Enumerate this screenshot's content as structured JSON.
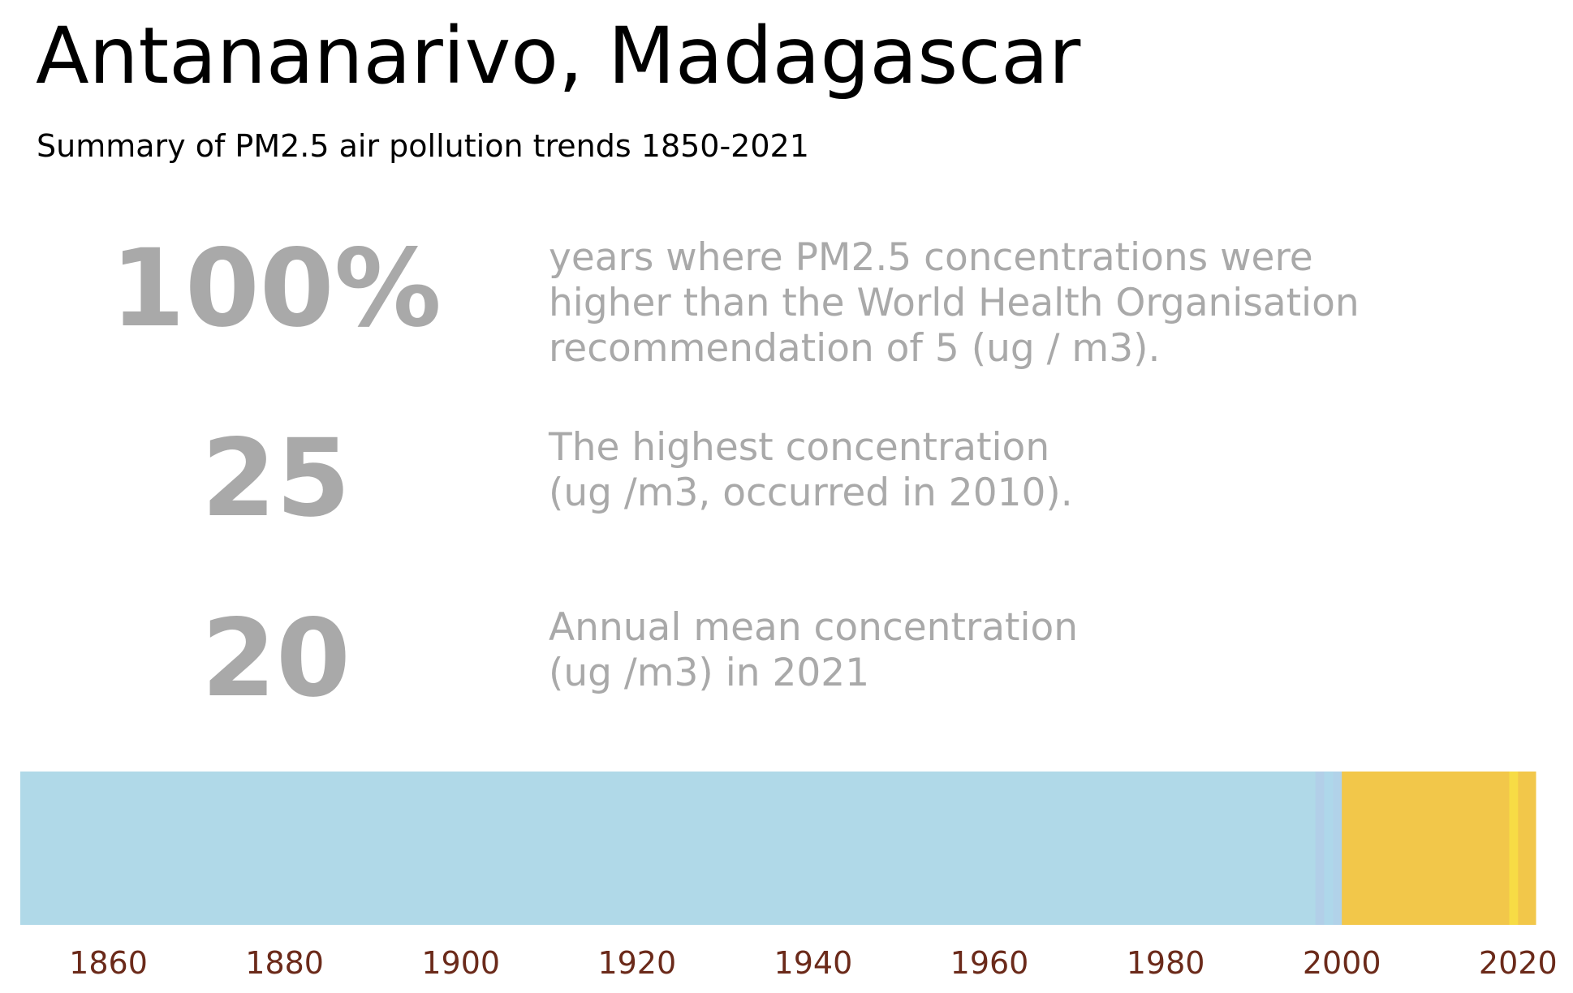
{
  "header": {
    "title": "Antananarivo, Madagascar",
    "subtitle": "Summary of PM2.5 air pollution trends 1850-2021"
  },
  "stats": [
    {
      "value": "100%",
      "description": [
        "years where PM2.5 concentrations were",
        "higher than the World Health Organisation",
        "recommendation of 5 (ug / m3)."
      ]
    },
    {
      "value": "25",
      "description": [
        "The highest concentration",
        "(ug /m3, occurred in 2010)."
      ]
    },
    {
      "value": "20",
      "description": [
        "Annual mean concentration",
        "(ug /m3) in 2021"
      ]
    }
  ],
  "chart_data": {
    "type": "heatmap",
    "title": "",
    "xlabel": "",
    "ylabel": "",
    "xlim": [
      1850,
      2022
    ],
    "x_ticks": [
      "1860",
      "1880",
      "1900",
      "1920",
      "1940",
      "1960",
      "1980",
      "2000",
      "2020"
    ],
    "segments": [
      {
        "start": 1850,
        "end": 1997,
        "color": "#b0d9e8"
      },
      {
        "start": 1997,
        "end": 1998,
        "color": "#b2cfe8"
      },
      {
        "start": 1998,
        "end": 1999,
        "color": "#aed7ea"
      },
      {
        "start": 1999,
        "end": 2000,
        "color": "#b1d2e9"
      },
      {
        "start": 2000,
        "end": 2019,
        "color": "#f2c74a"
      },
      {
        "start": 2019,
        "end": 2020,
        "color": "#f7dc45"
      },
      {
        "start": 2020,
        "end": 2022,
        "color": "#f2c74a"
      }
    ],
    "tick_color": "#6b2a1a"
  }
}
